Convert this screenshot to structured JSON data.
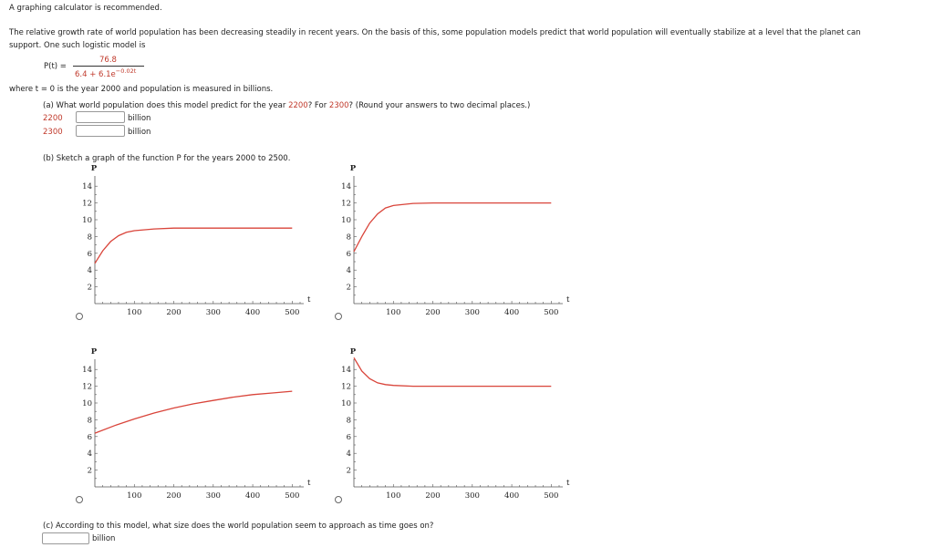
{
  "header": {
    "note": "A graphing calculator is recommended."
  },
  "intro": {
    "line1": "The relative growth rate of world population has been decreasing steadily in recent years. On the basis of this, some population models predict that world population will eventually stabilize at a level that the planet can",
    "line2": "support. One such logistic model is"
  },
  "formula": {
    "lhs": "P(t) =",
    "numerator": "76.8",
    "denominator_base": "6.4 + 6.1e",
    "denominator_exp": "−0.02t"
  },
  "where_text": "where t = 0 is the year 2000 and population is measured in billions.",
  "part_a": {
    "prefix": "(a) What world population does this model predict for the year ",
    "year1": "2200",
    "mid": "? For ",
    "year2": "2300",
    "suffix": "? (Round your answers to two decimal places.)",
    "rows": [
      {
        "label": "2200",
        "value": "",
        "unit": "billion"
      },
      {
        "label": "2300",
        "value": "",
        "unit": "billion"
      }
    ]
  },
  "part_b": {
    "prompt": "(b) Sketch a graph of the function P for the years 2000 to 2500."
  },
  "part_c": {
    "prompt": "(c) According to this model, what size does the world population seem to approach as time goes on?",
    "value": "",
    "unit": "billion"
  },
  "chart_data": [
    {
      "type": "line",
      "xlabel": "t",
      "ylabel": "P",
      "xticks": [
        100,
        200,
        300,
        400,
        500
      ],
      "yticks": [
        2,
        4,
        6,
        8,
        10,
        12,
        14
      ],
      "xlim": [
        0,
        520
      ],
      "ylim": [
        0,
        15
      ],
      "series": [
        {
          "x": [
            0,
            20,
            40,
            60,
            80,
            100,
            150,
            200,
            250,
            300,
            350,
            400,
            450,
            500
          ],
          "y": [
            4.8,
            6.3,
            7.4,
            8.1,
            8.5,
            8.7,
            8.9,
            9.0,
            9.0,
            9.0,
            9.0,
            9.0,
            9.0,
            9.0
          ]
        }
      ]
    },
    {
      "type": "line",
      "xlabel": "t",
      "ylabel": "P",
      "xticks": [
        100,
        200,
        300,
        400,
        500
      ],
      "yticks": [
        2,
        4,
        6,
        8,
        10,
        12,
        14
      ],
      "xlim": [
        0,
        520
      ],
      "ylim": [
        0,
        15
      ],
      "series": [
        {
          "x": [
            0,
            20,
            40,
            60,
            80,
            100,
            150,
            200,
            250,
            300,
            350,
            400,
            450,
            500
          ],
          "y": [
            6.2,
            8.0,
            9.6,
            10.7,
            11.4,
            11.7,
            11.95,
            12.0,
            12.0,
            12.0,
            12.0,
            12.0,
            12.0,
            12.0
          ]
        }
      ]
    },
    {
      "type": "line",
      "xlabel": "t",
      "ylabel": "P",
      "xticks": [
        100,
        200,
        300,
        400,
        500
      ],
      "yticks": [
        2,
        4,
        6,
        8,
        10,
        12,
        14
      ],
      "xlim": [
        0,
        520
      ],
      "ylim": [
        0,
        15
      ],
      "series": [
        {
          "x": [
            0,
            50,
            100,
            150,
            200,
            250,
            300,
            350,
            400,
            450,
            500
          ],
          "y": [
            6.4,
            7.3,
            8.1,
            8.8,
            9.4,
            9.9,
            10.3,
            10.7,
            11.0,
            11.2,
            11.4
          ]
        }
      ]
    },
    {
      "type": "line",
      "xlabel": "t",
      "ylabel": "P",
      "xticks": [
        100,
        200,
        300,
        400,
        500
      ],
      "yticks": [
        2,
        4,
        6,
        8,
        10,
        12,
        14
      ],
      "xlim": [
        0,
        520
      ],
      "ylim": [
        0,
        15
      ],
      "series": [
        {
          "x": [
            0,
            20,
            40,
            60,
            80,
            100,
            150,
            200,
            250,
            300,
            350,
            400,
            450,
            500
          ],
          "y": [
            15.4,
            13.8,
            12.9,
            12.4,
            12.2,
            12.1,
            12.0,
            12.0,
            12.0,
            12.0,
            12.0,
            12.0,
            12.0,
            12.0
          ]
        }
      ]
    }
  ]
}
